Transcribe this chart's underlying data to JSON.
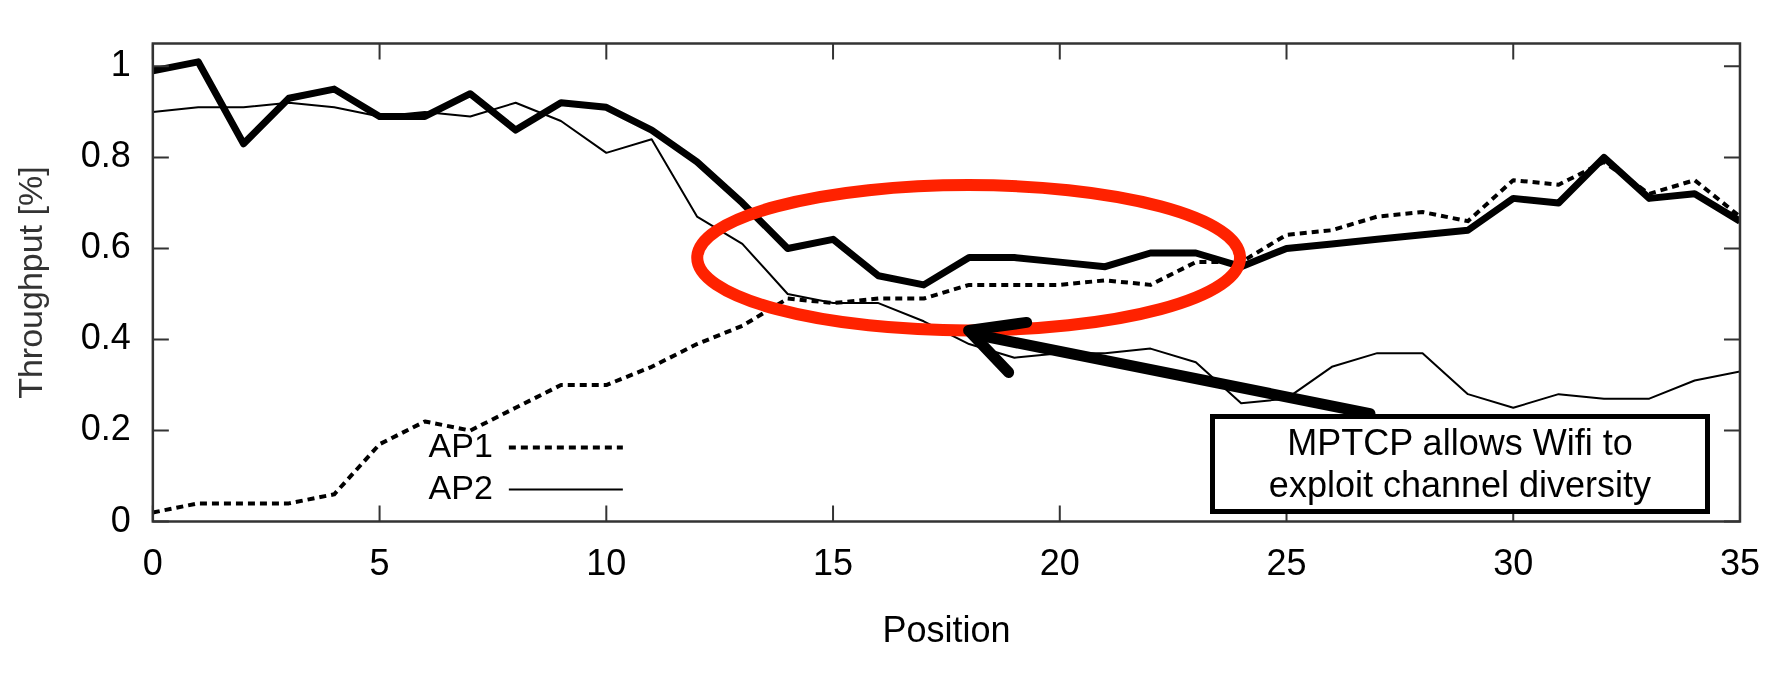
{
  "chart_data": {
    "type": "line",
    "xlabel": "Position",
    "ylabel": "Throughput [%]",
    "x": [
      0,
      1,
      2,
      3,
      4,
      5,
      6,
      7,
      8,
      9,
      10,
      11,
      12,
      13,
      14,
      15,
      16,
      17,
      18,
      19,
      20,
      21,
      22,
      23,
      24,
      25,
      26,
      27,
      28,
      29,
      30,
      31,
      32,
      33,
      34,
      35
    ],
    "series": [
      {
        "name": "AP1",
        "color": "#000000",
        "line_style": "dashed",
        "values": [
          0.02,
          0.04,
          0.04,
          0.04,
          0.06,
          0.17,
          0.22,
          0.2,
          0.25,
          0.3,
          0.3,
          0.34,
          0.39,
          0.43,
          0.49,
          0.48,
          0.49,
          0.49,
          0.52,
          0.52,
          0.52,
          0.53,
          0.52,
          0.57,
          0.57,
          0.63,
          0.64,
          0.67,
          0.68,
          0.66,
          0.75,
          0.74,
          0.79,
          0.72,
          0.75,
          0.67
        ]
      },
      {
        "name": "AP2",
        "color": "#000000",
        "line_style": "solid",
        "values": [
          0.9,
          0.91,
          0.91,
          0.92,
          0.91,
          0.89,
          0.9,
          0.89,
          0.92,
          0.88,
          0.81,
          0.84,
          0.67,
          0.61,
          0.5,
          0.48,
          0.48,
          0.44,
          0.39,
          0.36,
          0.37,
          0.37,
          0.38,
          0.35,
          0.26,
          0.27,
          0.34,
          0.37,
          0.37,
          0.28,
          0.25,
          0.28,
          0.27,
          0.27,
          0.31,
          0.33
        ]
      },
      {
        "color": "#000000",
        "line_style": "solid",
        "values": [
          0.99,
          1.01,
          0.83,
          0.93,
          0.95,
          0.89,
          0.89,
          0.94,
          0.86,
          0.92,
          0.91,
          0.86,
          0.79,
          0.7,
          0.6,
          0.62,
          0.54,
          0.52,
          0.58,
          0.58,
          0.57,
          0.56,
          0.59,
          0.59,
          0.56,
          0.6,
          0.61,
          0.62,
          0.63,
          0.64,
          0.71,
          0.7,
          0.8,
          0.71,
          0.72,
          0.66
        ]
      }
    ],
    "xlim": [
      0,
      35
    ],
    "xticks": [
      0,
      5,
      10,
      15,
      20,
      25,
      30,
      35
    ],
    "ylim": [
      0,
      1.05
    ],
    "yticks": [
      0,
      0.2,
      0.4,
      0.6,
      0.8,
      1
    ],
    "legend": "bottom left",
    "marker": "none",
    "annotations": [
      "MPTCP allows Wifi to exploit channel diversity"
    ]
  }
}
